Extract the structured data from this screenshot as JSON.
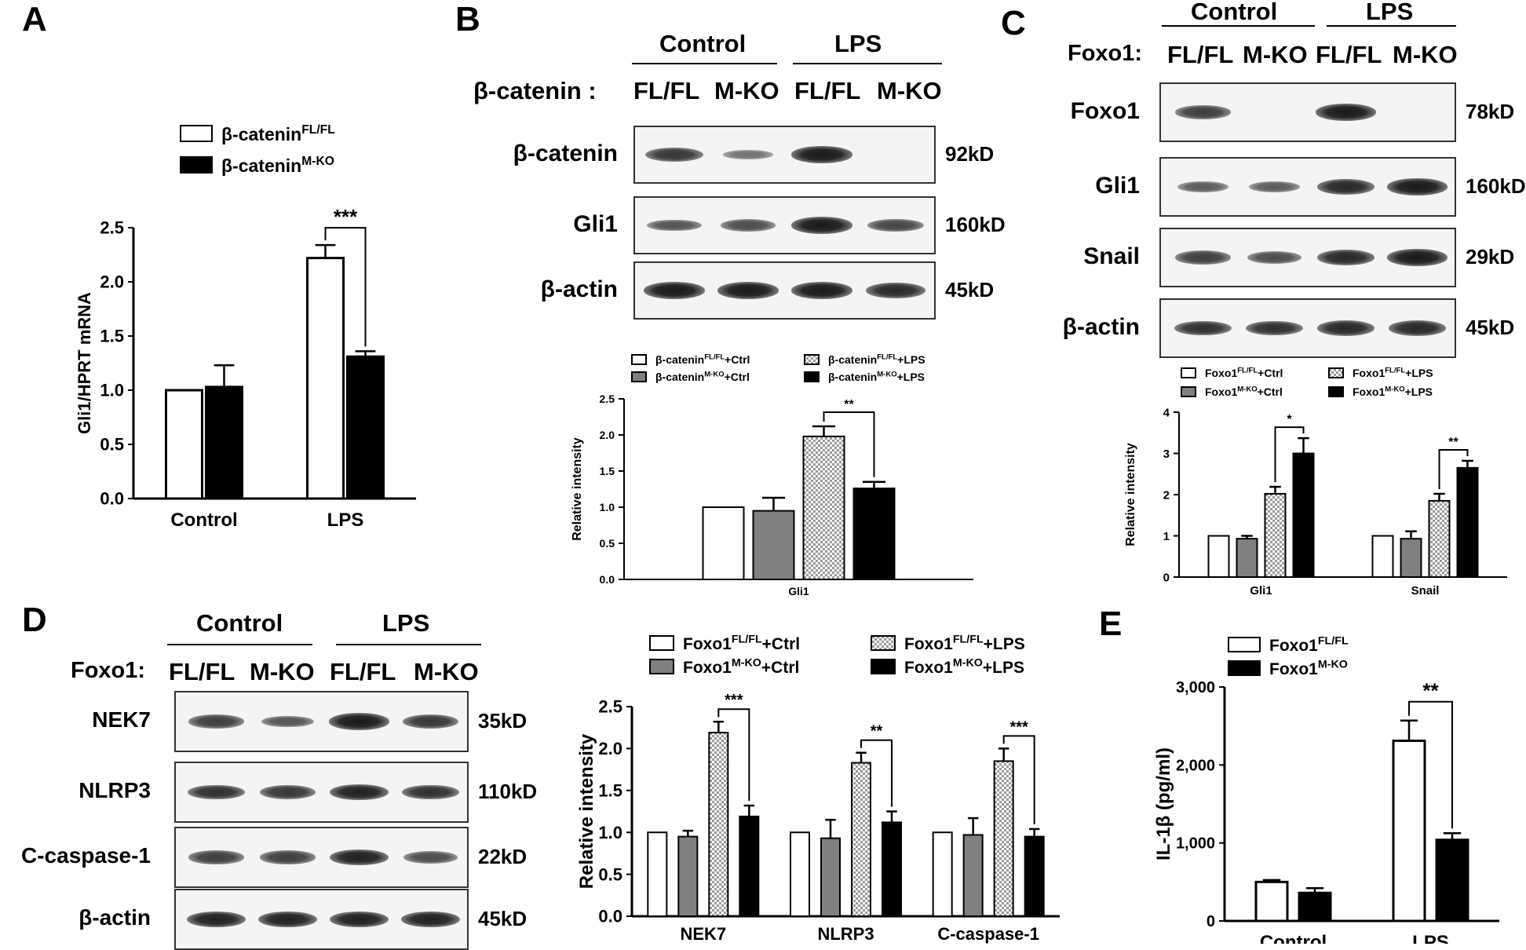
{
  "panels": {
    "A": "A",
    "B": "B",
    "C": "C",
    "D": "D",
    "E": "E"
  },
  "blots": {
    "B": {
      "group_control": "Control",
      "group_lps": "LPS",
      "row_label": "β-catenin :",
      "lanes": [
        "FL/FL",
        "M-KO",
        "FL/FL",
        "M-KO"
      ],
      "rows": [
        {
          "name": "β-catenin",
          "kd": "92kD",
          "intensity": [
            0.75,
            0.35,
            0.95,
            0.0
          ]
        },
        {
          "name": "Gli1",
          "kd": "160kD",
          "intensity": [
            0.55,
            0.6,
            0.95,
            0.65
          ]
        },
        {
          "name": "β-actin",
          "kd": "45kD",
          "intensity": [
            0.95,
            0.95,
            0.95,
            0.85
          ]
        }
      ]
    },
    "C": {
      "group_control": "Control",
      "group_lps": "LPS",
      "row_label": "Foxo1:",
      "lanes": [
        "FL/FL",
        "M-KO",
        "FL/FL",
        "M-KO"
      ],
      "rows": [
        {
          "name": "Foxo1",
          "kd": "78kD",
          "intensity": [
            0.7,
            0.0,
            0.95,
            0.0
          ]
        },
        {
          "name": "Gli1",
          "kd": "160kD",
          "intensity": [
            0.5,
            0.5,
            0.85,
            0.95
          ]
        },
        {
          "name": "Snail",
          "kd": "29kD",
          "intensity": [
            0.7,
            0.6,
            0.85,
            0.95
          ]
        },
        {
          "name": "β-actin",
          "kd": "45kD",
          "intensity": [
            0.8,
            0.8,
            0.85,
            0.85
          ]
        }
      ]
    },
    "D": {
      "group_control": "Control",
      "group_lps": "LPS",
      "row_label": "Foxo1:",
      "lanes": [
        "FL/FL",
        "M-KO",
        "FL/FL",
        "M-KO"
      ],
      "rows": [
        {
          "name": "NEK7",
          "kd": "35kD",
          "intensity": [
            0.7,
            0.55,
            0.95,
            0.75
          ]
        },
        {
          "name": "NLRP3",
          "kd": "110kD",
          "intensity": [
            0.8,
            0.75,
            0.9,
            0.8
          ]
        },
        {
          "name": "C-caspase-1",
          "kd": "22kD",
          "intensity": [
            0.7,
            0.7,
            0.9,
            0.6
          ]
        },
        {
          "name": "β-actin",
          "kd": "45kD",
          "intensity": [
            0.9,
            0.9,
            0.9,
            0.9
          ]
        }
      ]
    }
  },
  "chart_data": [
    {
      "id": "A",
      "type": "bar",
      "categories": [
        "Control",
        "LPS"
      ],
      "series": [
        {
          "name": "β-catenin",
          "sup": "FL/FL",
          "pattern": "white",
          "values": [
            1.0,
            2.22
          ],
          "errors": [
            0,
            0.12
          ]
        },
        {
          "name": "β-catenin",
          "sup": "M-KO",
          "pattern": "black",
          "values": [
            1.03,
            1.31
          ],
          "errors": [
            0.2,
            0.05
          ]
        }
      ],
      "ylabel": "Gli1/HPRT mRNA",
      "ylim": [
        0,
        2.5
      ],
      "yticks": [
        "0.0",
        "0.5",
        "1.0",
        "1.5",
        "2.0",
        "2.5"
      ],
      "significance": [
        {
          "label": "***",
          "category": 1
        }
      ]
    },
    {
      "id": "B",
      "type": "bar",
      "categories": [
        "Gli1"
      ],
      "series": [
        {
          "name": "β-catenin",
          "sup": "FL/FL",
          "suffix": "+Ctrl",
          "pattern": "white",
          "values": [
            1.0
          ],
          "errors": [
            0
          ]
        },
        {
          "name": "β-catenin",
          "sup": "M-KO",
          "suffix": "+Ctrl",
          "pattern": "gray",
          "values": [
            0.95
          ],
          "errors": [
            0.18
          ]
        },
        {
          "name": "β-catenin",
          "sup": "FL/FL",
          "suffix": "+LPS",
          "pattern": "checker",
          "values": [
            1.98
          ],
          "errors": [
            0.14
          ]
        },
        {
          "name": "β-catenin",
          "sup": "M-KO",
          "suffix": "+LPS",
          "pattern": "black",
          "values": [
            1.26
          ],
          "errors": [
            0.09
          ]
        }
      ],
      "ylabel": "Relative intensity",
      "ylim": [
        0,
        2.5
      ],
      "yticks": [
        "0.0",
        "0.5",
        "1.0",
        "1.5",
        "2.0",
        "2.5"
      ],
      "significance": [
        {
          "label": "**",
          "category": 0
        }
      ]
    },
    {
      "id": "C",
      "type": "bar",
      "categories": [
        "Gli1",
        "Snail"
      ],
      "series": [
        {
          "name": "Foxo1",
          "sup": "FL/FL",
          "suffix": "+Ctrl",
          "pattern": "white",
          "values": [
            1.0,
            1.0
          ],
          "errors": [
            0,
            0
          ]
        },
        {
          "name": "Foxo1",
          "sup": "M-KO",
          "suffix": "+Ctrl",
          "pattern": "gray",
          "values": [
            0.93,
            0.93
          ],
          "errors": [
            0.07,
            0.18
          ]
        },
        {
          "name": "Foxo1",
          "sup": "FL/FL",
          "suffix": "+LPS",
          "pattern": "checker",
          "values": [
            2.02,
            1.85
          ],
          "errors": [
            0.17,
            0.17
          ]
        },
        {
          "name": "Foxo1",
          "sup": "M-KO",
          "suffix": "+LPS",
          "pattern": "black",
          "values": [
            3.0,
            2.65
          ],
          "errors": [
            0.37,
            0.17
          ]
        }
      ],
      "ylabel": "Relative intensity",
      "ylim": [
        0,
        4
      ],
      "yticks": [
        "0",
        "1",
        "2",
        "3",
        "4"
      ],
      "significance": [
        {
          "label": "*",
          "category": 0
        },
        {
          "label": "**",
          "category": 1
        }
      ]
    },
    {
      "id": "D",
      "type": "bar",
      "categories": [
        "NEK7",
        "NLRP3",
        "C-caspase-1"
      ],
      "series": [
        {
          "name": "Foxo1",
          "sup": "FL/FL",
          "suffix": "+Ctrl",
          "pattern": "white",
          "values": [
            1.0,
            1.0,
            1.0
          ],
          "errors": [
            0,
            0,
            0
          ]
        },
        {
          "name": "Foxo1",
          "sup": "M-KO",
          "suffix": "+Ctrl",
          "pattern": "gray",
          "values": [
            0.95,
            0.93,
            0.97
          ],
          "errors": [
            0.07,
            0.22,
            0.2
          ]
        },
        {
          "name": "Foxo1",
          "sup": "FL/FL",
          "suffix": "+LPS",
          "pattern": "checker",
          "values": [
            2.19,
            1.83,
            1.85
          ],
          "errors": [
            0.13,
            0.12,
            0.15
          ]
        },
        {
          "name": "Foxo1",
          "sup": "M-KO",
          "suffix": "+LPS",
          "pattern": "black",
          "values": [
            1.19,
            1.12,
            0.95
          ],
          "errors": [
            0.13,
            0.13,
            0.09
          ]
        }
      ],
      "ylabel": "Relative intensity",
      "ylim": [
        0,
        2.5
      ],
      "yticks": [
        "0.0",
        "0.5",
        "1.0",
        "1.5",
        "2.0",
        "2.5"
      ],
      "significance": [
        {
          "label": "***",
          "category": 0
        },
        {
          "label": "**",
          "category": 1
        },
        {
          "label": "***",
          "category": 2
        }
      ]
    },
    {
      "id": "E",
      "type": "bar",
      "categories": [
        "Control",
        "LPS"
      ],
      "series": [
        {
          "name": "Foxo1",
          "sup": "FL/FL",
          "pattern": "white",
          "values": [
            500,
            2310
          ],
          "errors": [
            25,
            260
          ]
        },
        {
          "name": "Foxo1",
          "sup": "M-KO",
          "pattern": "black",
          "values": [
            360,
            1040
          ],
          "errors": [
            60,
            85
          ]
        }
      ],
      "ylabel": "IL-1β (pg/ml)",
      "ylim": [
        0,
        3000
      ],
      "yticks": [
        "0",
        "1,000",
        "2,000",
        "3,000"
      ],
      "significance": [
        {
          "label": "**",
          "category": 1
        }
      ]
    }
  ]
}
